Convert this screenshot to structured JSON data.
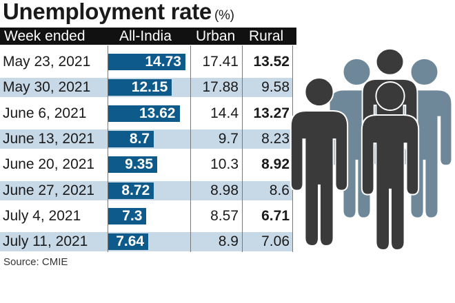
{
  "title": "Unemployment rate",
  "unit": "(%)",
  "source": "Source: CMIE",
  "colors": {
    "bar": "#0e5a8a",
    "shade": "#c7d8e7",
    "header": "#111111",
    "person_dark": "#3a3a3a",
    "person_light": "#6e8899"
  },
  "chart_data": {
    "type": "table",
    "title": "Unemployment rate (%)",
    "columns": [
      "Week ended",
      "All-India",
      "Urban",
      "Rural"
    ],
    "rows": [
      {
        "week": "May 23, 2021",
        "all_india": "14.73",
        "urban": "17.41",
        "rural": "13.52"
      },
      {
        "week": "May 30, 2021",
        "all_india": "12.15",
        "urban": "17.88",
        "rural": "9.58"
      },
      {
        "week": "June 6, 2021",
        "all_india": "13.62",
        "urban": "14.4",
        "rural": "13.27"
      },
      {
        "week": "June 13, 2021",
        "all_india": "8.7",
        "urban": "9.7",
        "rural": "8.23"
      },
      {
        "week": "June 20, 2021",
        "all_india": "9.35",
        "urban": "10.3",
        "rural": "8.92"
      },
      {
        "week": "June 27, 2021",
        "all_india": "8.72",
        "urban": "8.98",
        "rural": "8.6"
      },
      {
        "week": "July 4, 2021",
        "all_india": "7.3",
        "urban": "8.57",
        "rural": "6.71"
      },
      {
        "week": "July 11, 2021",
        "all_india": "7.64",
        "urban": "8.9",
        "rural": "7.06"
      }
    ]
  }
}
